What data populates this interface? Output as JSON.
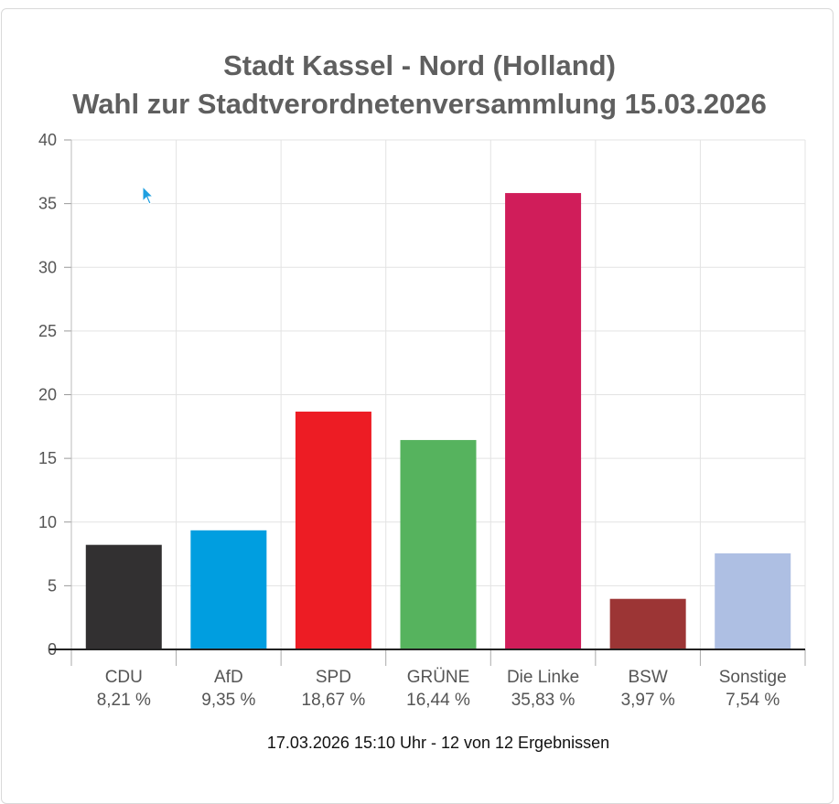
{
  "chart_data": {
    "type": "bar",
    "title": "Stadt Kassel - Nord (Holland)",
    "subtitle": "Wahl zur Stadtverordnetenversammlung 15.03.2026",
    "categories": [
      "CDU",
      "AfD",
      "SPD",
      "GRÜNE",
      "Die Linke",
      "BSW",
      "Sonstige"
    ],
    "values": [
      8.21,
      9.35,
      18.67,
      16.44,
      35.83,
      3.97,
      7.54
    ],
    "value_labels": [
      "8,21 %",
      "9,35 %",
      "18,67 %",
      "16,44 %",
      "35,83 %",
      "3,97 %",
      "7,54 %"
    ],
    "colors": [
      "#323031",
      "#009ee0",
      "#ed1c24",
      "#56b35e",
      "#d01d5a",
      "#9c3535",
      "#aebfe3"
    ],
    "ylim": [
      0,
      40
    ],
    "yticks": [
      "0",
      "5",
      "10",
      "15",
      "20",
      "25",
      "30",
      "35",
      "40"
    ],
    "grid": true,
    "xlabel": "",
    "ylabel": ""
  },
  "footer": "17.03.2026 15:10 Uhr - 12 von 12 Ergebnissen"
}
